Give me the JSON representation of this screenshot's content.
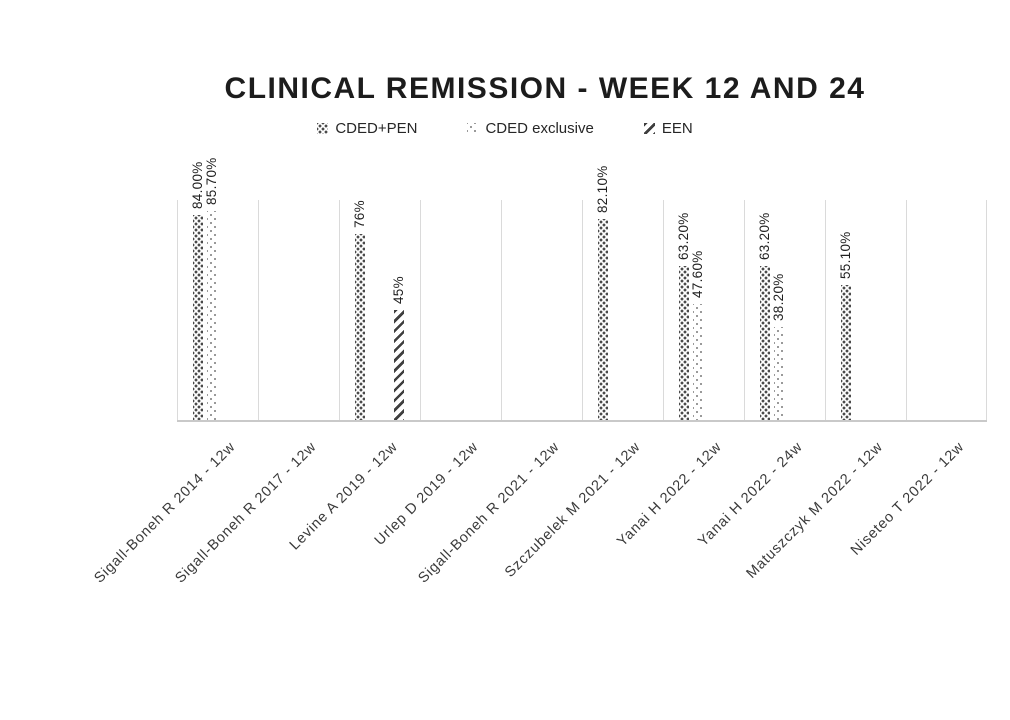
{
  "title": "CLINICAL REMISSION - WEEK 12 AND 24",
  "legend": {
    "items": [
      {
        "label": "CDED+PEN",
        "pattern": "crosshatch"
      },
      {
        "label": "CDED exclusive",
        "pattern": "dots"
      },
      {
        "label": "EEN",
        "pattern": "diagonal"
      }
    ]
  },
  "chart_data": {
    "type": "bar",
    "title": "CLINICAL REMISSION - WEEK 12 AND 24",
    "categories": [
      "Sigall-Boneh R 2014 - 12w",
      "Sigall-Boneh R 2017 - 12w",
      "Levine A 2019 - 12w",
      "Urlep D 2019 - 12w",
      "Sigall-Boneh R 2021 - 12w",
      "Szczubelek M 2021 - 12w",
      "Yanai H 2022 - 12w",
      "Yanai H 2022 - 24w",
      "Matuszczyk M 2022 - 12w",
      "Niseteo T 2022 - 12w"
    ],
    "series": [
      {
        "name": "CDED+PEN",
        "pattern": "crosshatch",
        "values": [
          84.0,
          null,
          76,
          null,
          null,
          82.1,
          63.2,
          63.2,
          55.1,
          null
        ],
        "labels": [
          "84.00%",
          null,
          "76%",
          null,
          null,
          "82.10%",
          "63.20%",
          "63.20%",
          "55.10%",
          null
        ]
      },
      {
        "name": "CDED exclusive",
        "pattern": "dots",
        "values": [
          85.7,
          null,
          null,
          null,
          null,
          null,
          47.6,
          38.2,
          null,
          null
        ],
        "labels": [
          "85.70%",
          null,
          null,
          null,
          null,
          null,
          "47.60%",
          "38.20%",
          null,
          null
        ]
      },
      {
        "name": "EEN",
        "pattern": "diagonal",
        "values": [
          null,
          null,
          45,
          null,
          null,
          null,
          null,
          null,
          null,
          null
        ],
        "labels": [
          null,
          null,
          "45%",
          null,
          null,
          null,
          null,
          null,
          null,
          null
        ]
      }
    ],
    "ylim": [
      0,
      90
    ],
    "xlabel": "",
    "ylabel": "",
    "grid": "vertical",
    "legend_position": "top",
    "value_labels": "rotated-90-above-bars",
    "category_label_rotation_deg": 45,
    "colors": {
      "pattern_dark": "#4a4a4a",
      "pattern_light": "#8f8f8f",
      "gridline": "#dadada",
      "axis_line": "#c9c9c9",
      "text": "#262626",
      "title_text": "#1c1c1c",
      "background": "#ffffff"
    }
  }
}
